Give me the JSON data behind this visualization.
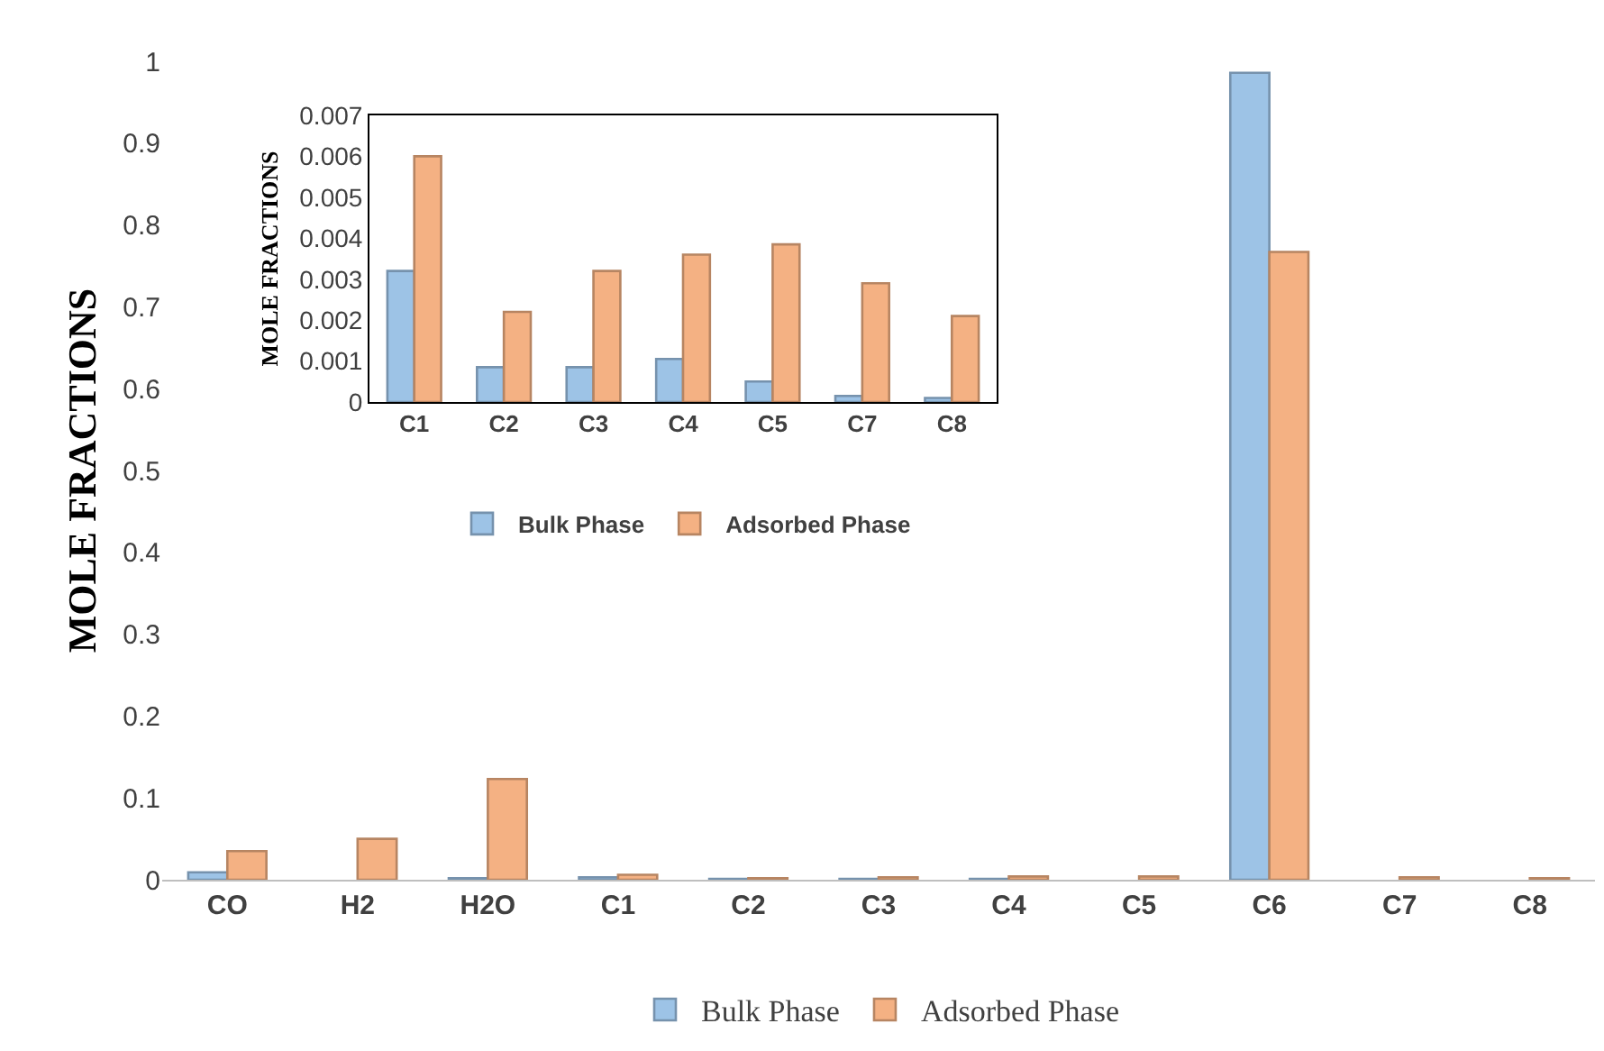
{
  "chart_data": [
    {
      "type": "bar",
      "ylabel": "MOLE FRACTIONS",
      "categories": [
        "CO",
        "H2",
        "H2O",
        "C1",
        "C2",
        "C3",
        "C4",
        "C5",
        "C6",
        "C7",
        "C8"
      ],
      "series": [
        {
          "name": "Bulk Phase",
          "color": "#9dc3e6",
          "values": [
            0.009,
            null,
            0.002,
            0.003,
            0.001,
            0.001,
            0.001,
            null,
            0.986,
            null,
            null
          ]
        },
        {
          "name": "Adsorbed Phase",
          "color": "#f4b183",
          "values": [
            0.035,
            0.05,
            0.123,
            0.006,
            0.002,
            0.003,
            0.004,
            0.004,
            0.767,
            0.003,
            0.002
          ]
        }
      ],
      "ylim": [
        0,
        1
      ],
      "yticks": [
        0,
        0.1,
        0.2,
        0.3,
        0.4,
        0.5,
        0.6,
        0.7,
        0.8,
        0.9,
        1
      ],
      "grid": false,
      "legend": "bottom"
    },
    {
      "type": "bar",
      "ylabel": "MOLE FRACTIONS",
      "categories": [
        "C1",
        "C2",
        "C3",
        "C4",
        "C5",
        "C7",
        "C8"
      ],
      "series": [
        {
          "name": "Bulk Phase",
          "color": "#9dc3e6",
          "values": [
            0.0032,
            0.00085,
            0.00085,
            0.00105,
            0.0005,
            0.00015,
            0.0001
          ]
        },
        {
          "name": "Adsorbed Phase",
          "color": "#f4b183",
          "values": [
            0.006,
            0.0022,
            0.0032,
            0.0036,
            0.00385,
            0.0029,
            0.0021
          ]
        }
      ],
      "ylim": [
        0,
        0.007
      ],
      "yticks": [
        0,
        0.001,
        0.002,
        0.003,
        0.004,
        0.005,
        0.006,
        0.007
      ],
      "grid": false,
      "legend": "bottom"
    }
  ]
}
